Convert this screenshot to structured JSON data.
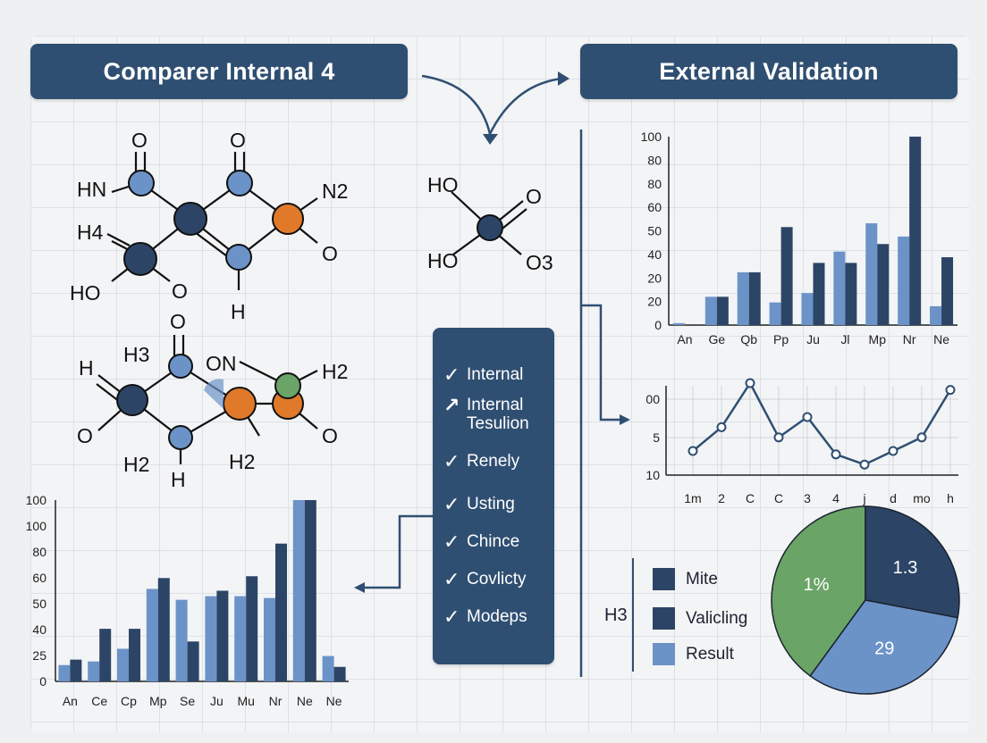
{
  "titles": {
    "left": "Comparer Internal 4",
    "right": "External Validation"
  },
  "colors": {
    "dark": "#2f4f72",
    "navy": "#2c4566",
    "light": "#6b93c8",
    "orange": "#e0792a",
    "green": "#6aa467",
    "line": "#2f4f72"
  },
  "molecules": {
    "m1": [
      "O",
      "O",
      "HN",
      "N2",
      "H4",
      "O",
      "HO",
      "O",
      "H"
    ],
    "m2": [
      "O",
      "H3",
      "ON",
      "H2",
      "H",
      "O",
      "O",
      "H2",
      "H2",
      "H"
    ],
    "m3": [
      "HO",
      "O",
      "HO",
      "O3"
    ]
  },
  "checklist": [
    {
      "mark": "✓",
      "label": "Internal"
    },
    {
      "mark": "↗",
      "label": "Internal Tesulion"
    },
    {
      "mark": "✓",
      "label": "Renely"
    },
    {
      "mark": "✓",
      "label": "Usting"
    },
    {
      "mark": "✓",
      "label": "Chince"
    },
    {
      "mark": "✓",
      "label": "Covlicty"
    },
    {
      "mark": "✓",
      "label": "Modeps"
    }
  ],
  "chart_data": [
    {
      "type": "bar",
      "categories": [
        "An",
        "Ge",
        "Qb",
        "Pp",
        "Ju",
        "Jl",
        "Mp",
        "Nr",
        "Ne"
      ],
      "yticks": [
        "100",
        "80",
        "80",
        "60",
        "50",
        "40",
        "20",
        "20",
        "0"
      ],
      "ylim": [
        0,
        100
      ],
      "series": [
        {
          "values": [
            1,
            15,
            28,
            12,
            17,
            39,
            54,
            47,
            10
          ]
        },
        {
          "values": [
            0,
            15,
            28,
            52,
            33,
            33,
            43,
            100,
            36
          ]
        }
      ]
    },
    {
      "type": "line",
      "categories": [
        "1m",
        "2",
        "C",
        "C",
        "3",
        "4",
        "j",
        "d",
        "mo",
        "h"
      ],
      "yticks": [
        "00",
        "5",
        "10"
      ],
      "values": [
        10,
        6.5,
        0,
        8,
        5,
        10.5,
        12,
        10,
        8,
        1
      ]
    },
    {
      "type": "bar",
      "categories": [
        "An",
        "Ce",
        "Cp",
        "Mp",
        "Se",
        "Ju",
        "Mu",
        "Nr",
        "Ne",
        "Ne"
      ],
      "yticks": [
        "100",
        "100",
        "80",
        "60",
        "50",
        "40",
        "25",
        "0"
      ],
      "ylim": [
        0,
        100
      ],
      "series": [
        {
          "values": [
            9,
            11,
            18,
            51,
            45,
            47,
            47,
            46,
            100,
            14
          ]
        },
        {
          "values": [
            12,
            29,
            29,
            57,
            22,
            50,
            58,
            76,
            100,
            8
          ]
        }
      ]
    },
    {
      "type": "pie",
      "values": [
        40,
        28,
        32
      ],
      "labels": [
        "1%",
        "1.3",
        "29"
      ],
      "legend_prefix": "H3",
      "legend": [
        "Mite",
        "Valicling",
        "Result"
      ]
    }
  ]
}
